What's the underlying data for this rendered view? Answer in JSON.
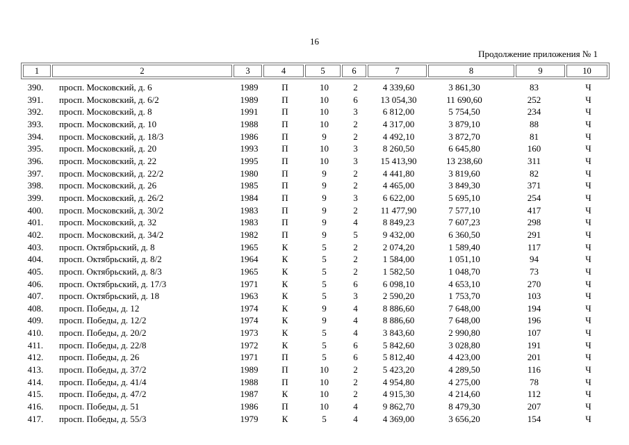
{
  "page": {
    "number": "16",
    "continuation": "Продолжение приложения № 1"
  },
  "table": {
    "column_numbers": [
      "1",
      "2",
      "3",
      "4",
      "5",
      "6",
      "7",
      "8",
      "9",
      "10"
    ],
    "rows": [
      [
        "390.",
        "просп. Московский, д. 6",
        "1989",
        "П",
        "10",
        "2",
        "4 339,60",
        "3 861,30",
        "83",
        "Ч"
      ],
      [
        "391.",
        "просп. Московский, д. 6/2",
        "1989",
        "П",
        "10",
        "6",
        "13 054,30",
        "11 690,60",
        "252",
        "Ч"
      ],
      [
        "392.",
        "просп. Московский, д. 8",
        "1991",
        "П",
        "10",
        "3",
        "6 812,00",
        "5 754,50",
        "234",
        "Ч"
      ],
      [
        "393.",
        "просп. Московский, д. 10",
        "1988",
        "П",
        "10",
        "2",
        "4 317,00",
        "3 879,10",
        "88",
        "Ч"
      ],
      [
        "394.",
        "просп. Московский, д. 18/3",
        "1986",
        "П",
        "9",
        "2",
        "4 492,10",
        "3 872,70",
        "81",
        "Ч"
      ],
      [
        "395.",
        "просп. Московский, д. 20",
        "1993",
        "П",
        "10",
        "3",
        "8 260,50",
        "6 645,80",
        "160",
        "Ч"
      ],
      [
        "396.",
        "просп. Московский, д. 22",
        "1995",
        "П",
        "10",
        "3",
        "15 413,90",
        "13 238,60",
        "311",
        "Ч"
      ],
      [
        "397.",
        "просп. Московский, д. 22/2",
        "1980",
        "П",
        "9",
        "2",
        "4 441,80",
        "3 819,60",
        "82",
        "Ч"
      ],
      [
        "398.",
        "просп. Московский, д. 26",
        "1985",
        "П",
        "9",
        "2",
        "4 465,00",
        "3 849,30",
        "371",
        "Ч"
      ],
      [
        "399.",
        "просп. Московский, д. 26/2",
        "1984",
        "П",
        "9",
        "3",
        "6 622,00",
        "5 695,10",
        "254",
        "Ч"
      ],
      [
        "400.",
        "просп. Московский, д. 30/2",
        "1983",
        "П",
        "9",
        "2",
        "11 477,90",
        "7 577,10",
        "417",
        "Ч"
      ],
      [
        "401.",
        "просп. Московский, д. 32",
        "1983",
        "П",
        "9",
        "4",
        "8 849,23",
        "7 607,23",
        "298",
        "Ч"
      ],
      [
        "402.",
        "просп. Московский, д. 34/2",
        "1982",
        "П",
        "9",
        "5",
        "9 432,00",
        "6 360,50",
        "291",
        "Ч"
      ],
      [
        "403.",
        "просп. Октябрьский, д. 8",
        "1965",
        "К",
        "5",
        "2",
        "2 074,20",
        "1 589,40",
        "117",
        "Ч"
      ],
      [
        "404.",
        "просп. Октябрьский, д. 8/2",
        "1964",
        "К",
        "5",
        "2",
        "1 584,00",
        "1 051,10",
        "94",
        "Ч"
      ],
      [
        "405.",
        "просп. Октябрьский, д. 8/3",
        "1965",
        "К",
        "5",
        "2",
        "1 582,50",
        "1 048,70",
        "73",
        "Ч"
      ],
      [
        "406.",
        "просп. Октябрьский, д. 17/3",
        "1971",
        "К",
        "5",
        "6",
        "6 098,10",
        "4 653,10",
        "270",
        "Ч"
      ],
      [
        "407.",
        "просп. Октябрьский, д. 18",
        "1963",
        "К",
        "5",
        "3",
        "2 590,20",
        "1 753,70",
        "103",
        "Ч"
      ],
      [
        "408.",
        "просп. Победы, д. 12",
        "1974",
        "К",
        "9",
        "4",
        "8 886,60",
        "7 648,00",
        "194",
        "Ч"
      ],
      [
        "409.",
        "просп. Победы, д. 12/2",
        "1974",
        "К",
        "9",
        "4",
        "8 886,60",
        "7 648,00",
        "196",
        "Ч"
      ],
      [
        "410.",
        "просп. Победы, д. 20/2",
        "1973",
        "К",
        "5",
        "4",
        "3 843,60",
        "2 990,80",
        "107",
        "Ч"
      ],
      [
        "411.",
        "просп. Победы, д. 22/8",
        "1972",
        "К",
        "5",
        "6",
        "5 842,60",
        "3 028,80",
        "191",
        "Ч"
      ],
      [
        "412.",
        "просп. Победы, д. 26",
        "1971",
        "П",
        "5",
        "6",
        "5 812,40",
        "4 423,00",
        "201",
        "Ч"
      ],
      [
        "413.",
        "просп. Победы, д. 37/2",
        "1989",
        "П",
        "10",
        "2",
        "5 423,20",
        "4 289,50",
        "116",
        "Ч"
      ],
      [
        "414.",
        "просп. Победы, д. 41/4",
        "1988",
        "П",
        "10",
        "2",
        "4 954,80",
        "4 275,00",
        "78",
        "Ч"
      ],
      [
        "415.",
        "просп. Победы, д. 47/2",
        "1987",
        "К",
        "10",
        "2",
        "4 915,30",
        "4 214,60",
        "112",
        "Ч"
      ],
      [
        "416.",
        "просп. Победы, д. 51",
        "1986",
        "П",
        "10",
        "4",
        "9 862,70",
        "8 479,30",
        "207",
        "Ч"
      ],
      [
        "417.",
        "просп. Победы, д. 55/3",
        "1979",
        "К",
        "5",
        "4",
        "4 369,00",
        "3 656,20",
        "154",
        "Ч"
      ]
    ]
  }
}
